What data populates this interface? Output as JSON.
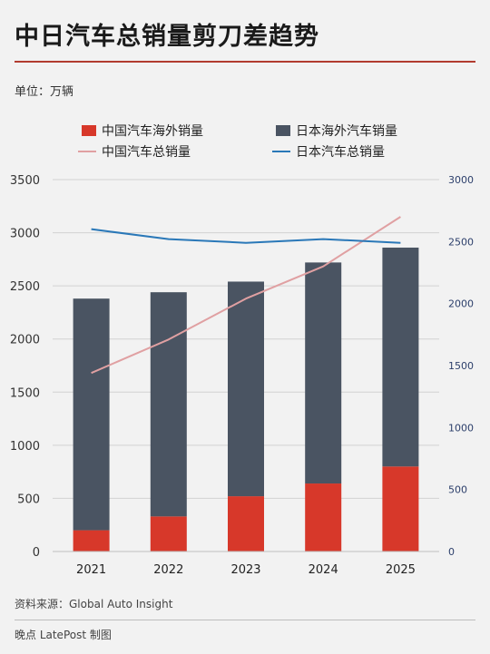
{
  "header": {
    "title": "中日汽车总销量剪刀差趋势",
    "unit": "单位：万辆"
  },
  "legend": [
    {
      "label": "中国汽车海外销量",
      "color": "#d7382a",
      "kind": "bar"
    },
    {
      "label": "日本海外汽车销量",
      "color": "#4a5462",
      "kind": "bar"
    },
    {
      "label": "中国汽车总销量",
      "color": "#e0a0a2",
      "kind": "line"
    },
    {
      "label": "日本汽车总销量",
      "color": "#2a78b8",
      "kind": "line"
    }
  ],
  "footer": {
    "source": "资料来源：Global Auto Insight",
    "credit": "晚点 LatePost 制图"
  },
  "chart_data": {
    "type": "bar",
    "categories": [
      "2021",
      "2022",
      "2023",
      "2024",
      "2025"
    ],
    "left_axis": {
      "min": 0,
      "max": 3500,
      "ticks": [
        "0",
        "500",
        "1000",
        "1500",
        "2000",
        "2500",
        "3000",
        "3500"
      ]
    },
    "right_axis": {
      "min": 0,
      "max": 3000,
      "ticks": [
        "0",
        "500",
        "1000",
        "1500",
        "2000",
        "2500",
        "3000"
      ]
    },
    "grid": true,
    "stacked_series": [
      {
        "name": "中国汽车海外销量",
        "color": "#d7382a",
        "values": [
          200,
          330,
          520,
          640,
          800
        ]
      },
      {
        "name": "日本海外汽车销量",
        "color": "#4a5462",
        "values": [
          2180,
          2110,
          2020,
          2080,
          2060
        ]
      }
    ],
    "line_series": [
      {
        "name": "中国汽车总销量",
        "color": "#e0a0a2",
        "axis": "right",
        "values": [
          1440,
          1710,
          2040,
          2300,
          2700
        ]
      },
      {
        "name": "日本汽车总销量",
        "color": "#2a78b8",
        "axis": "right",
        "values": [
          2600,
          2520,
          2490,
          2520,
          2490
        ]
      }
    ]
  }
}
